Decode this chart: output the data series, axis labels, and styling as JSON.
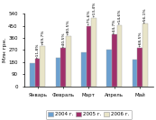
{
  "categories": [
    "Январь",
    "Февраль",
    "Март",
    "Апрель",
    "Май"
  ],
  "values_2004": [
    170,
    215,
    255,
    275,
    200
  ],
  "values_2005": [
    205,
    285,
    450,
    385,
    290
  ],
  "values_2006": [
    300,
    375,
    510,
    455,
    465
  ],
  "labels_2005": [
    "+11,8%",
    "+40,5%",
    "+75,6%",
    "+44,7%",
    "+68,5%"
  ],
  "labels_2006": [
    "+69,7%",
    "+80,5%",
    "+13,4%",
    "+14,6%",
    "+56,1%"
  ],
  "bar_color_2004": "#6ca0d0",
  "bar_color_2005": "#a0306a",
  "bar_color_2006": "#e8e4c8",
  "bar_edgecolor": "#aaaaaa",
  "ylim": [
    0,
    540
  ],
  "yticks": [
    0,
    90,
    180,
    270,
    360,
    450,
    540
  ],
  "ylabel": "Млн грн.",
  "legend_labels": [
    "2004 г.",
    "2005 г.",
    "2006 г."
  ]
}
